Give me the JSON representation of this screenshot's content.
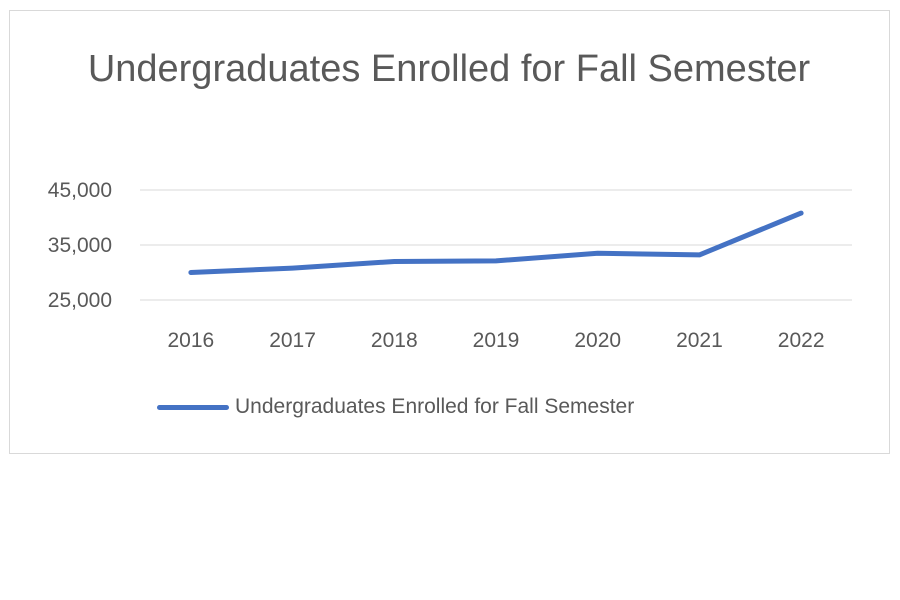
{
  "chart_data": {
    "type": "line",
    "title": "Undergraduates Enrolled for Fall Semester",
    "xlabel": "",
    "ylabel": "",
    "categories": [
      "2016",
      "2017",
      "2018",
      "2019",
      "2020",
      "2021",
      "2022"
    ],
    "series": [
      {
        "name": "Undergraduates Enrolled for Fall Semester",
        "values": [
          30000,
          30800,
          32000,
          32100,
          33500,
          33200,
          40800
        ],
        "color": "#4472C4"
      }
    ],
    "yticks": [
      "25,000",
      "35,000",
      "45,000"
    ],
    "ytick_values": [
      25000,
      35000,
      45000
    ],
    "ylim": [
      25000,
      45000
    ],
    "grid": true,
    "legend_position": "bottom"
  }
}
